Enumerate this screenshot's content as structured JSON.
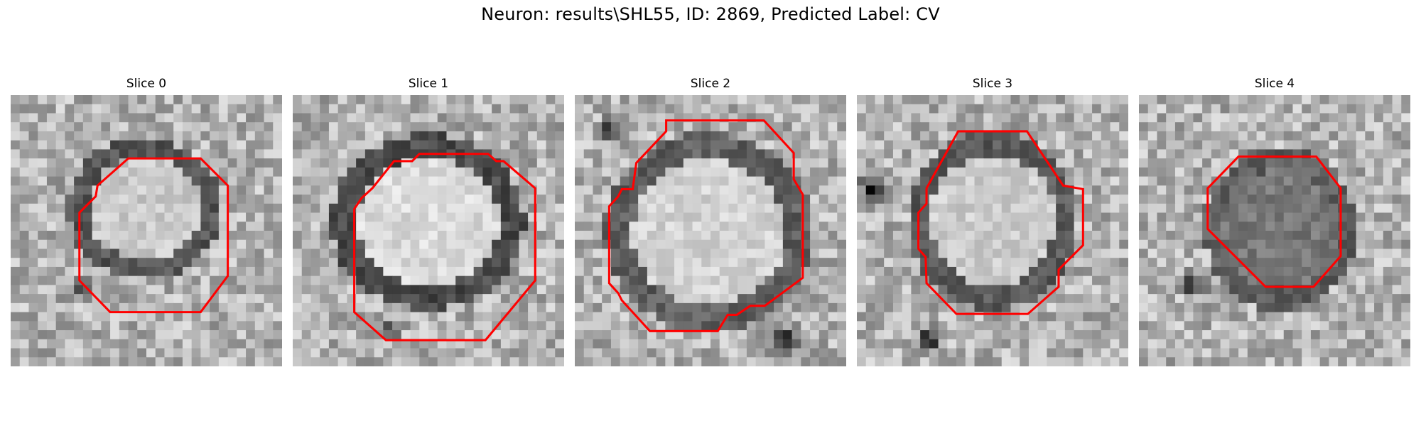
{
  "figure": {
    "title": "Neuron: results\\SHL55, ID: 2869, Predicted Label: CV",
    "overlay_color": "#ff0000"
  },
  "panels": [
    {
      "title": "Slice 0",
      "grid_size": 30
    },
    {
      "title": "Slice 1",
      "grid_size": 30
    },
    {
      "title": "Slice 2",
      "grid_size": 30
    },
    {
      "title": "Slice 3",
      "grid_size": 30
    },
    {
      "title": "Slice 4",
      "grid_size": 30
    }
  ]
}
